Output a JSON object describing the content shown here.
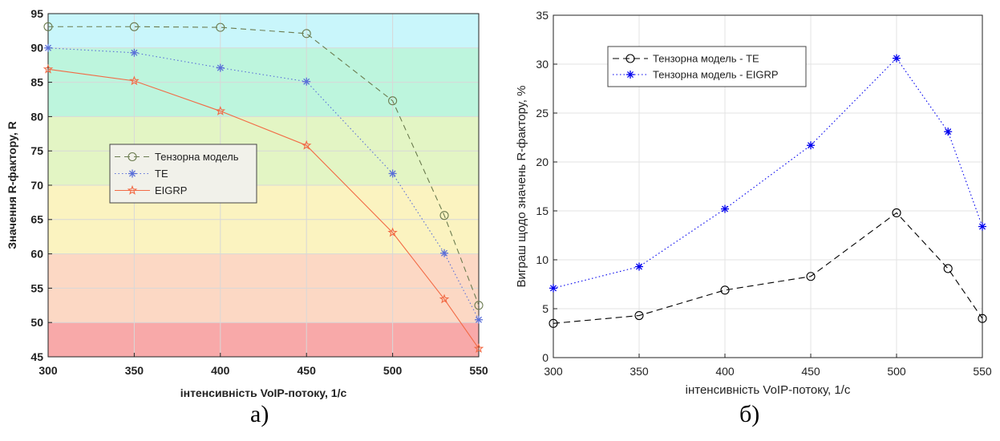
{
  "chart_data": [
    {
      "type": "line",
      "panel_label": "а)",
      "xlabel": "інтенсивність VoIP-потоку, 1/с",
      "ylabel": "Значення R-фактору, R",
      "xlim": [
        300,
        550
      ],
      "ylim": [
        45,
        95
      ],
      "xticks": [
        300,
        350,
        400,
        450,
        500,
        550
      ],
      "yticks": [
        45,
        50,
        55,
        60,
        65,
        70,
        75,
        80,
        85,
        90,
        95
      ],
      "grid": true,
      "legend_position": "middle-left",
      "background_bands": [
        {
          "from": 90,
          "to": 95,
          "color": "#c9f6fb"
        },
        {
          "from": 80,
          "to": 90,
          "color": "#bdf5dd"
        },
        {
          "from": 70,
          "to": 80,
          "color": "#e3f5c4"
        },
        {
          "from": 60,
          "to": 70,
          "color": "#fbf3c0"
        },
        {
          "from": 50,
          "to": 60,
          "color": "#fcd8c4"
        },
        {
          "from": 45,
          "to": 50,
          "color": "#f8a9a9"
        }
      ],
      "series": [
        {
          "name": "Тензорна модель",
          "color": "#6b7b4f",
          "dash": "7,5",
          "marker": "circle",
          "x": [
            300,
            350,
            400,
            450,
            500,
            530,
            550
          ],
          "y": [
            93.1,
            93.1,
            93.0,
            92.1,
            82.3,
            65.6,
            52.5
          ]
        },
        {
          "name": "TE",
          "color": "#5a6fd8",
          "dash": "1.5,3",
          "marker": "asterisk",
          "x": [
            300,
            350,
            400,
            450,
            500,
            530,
            550
          ],
          "y": [
            90.0,
            89.3,
            87.1,
            85.1,
            71.7,
            60.1,
            50.4
          ]
        },
        {
          "name": "EIGRP",
          "color": "#f26a45",
          "dash": "",
          "marker": "star",
          "x": [
            300,
            350,
            400,
            450,
            500,
            530,
            550
          ],
          "y": [
            86.9,
            85.2,
            80.8,
            75.8,
            63.1,
            53.4,
            46.2
          ]
        }
      ]
    },
    {
      "type": "line",
      "panel_label": "б)",
      "xlabel": "інтенсивність VoIP-потоку, 1/с",
      "ylabel": "Виграш щодо значень R-фактору, %",
      "xlim": [
        300,
        550
      ],
      "ylim": [
        0,
        35
      ],
      "xticks": [
        300,
        350,
        400,
        450,
        500,
        550
      ],
      "yticks": [
        0,
        5,
        10,
        15,
        20,
        25,
        30,
        35
      ],
      "grid": true,
      "legend_position": "top-left",
      "series": [
        {
          "name": "Тензорна модель - TE",
          "color": "#000000",
          "dash": "8,5",
          "marker": "circle",
          "x": [
            300,
            350,
            400,
            450,
            500,
            530,
            550
          ],
          "y": [
            3.5,
            4.3,
            6.9,
            8.3,
            14.8,
            9.1,
            4.0
          ]
        },
        {
          "name": "Тензорна модель - EIGRP",
          "color": "#0000ee",
          "dash": "1.5,3",
          "marker": "asterisk",
          "x": [
            300,
            350,
            400,
            450,
            500,
            530,
            550
          ],
          "y": [
            7.1,
            9.3,
            15.2,
            21.7,
            30.6,
            23.1,
            13.4
          ]
        }
      ]
    }
  ]
}
